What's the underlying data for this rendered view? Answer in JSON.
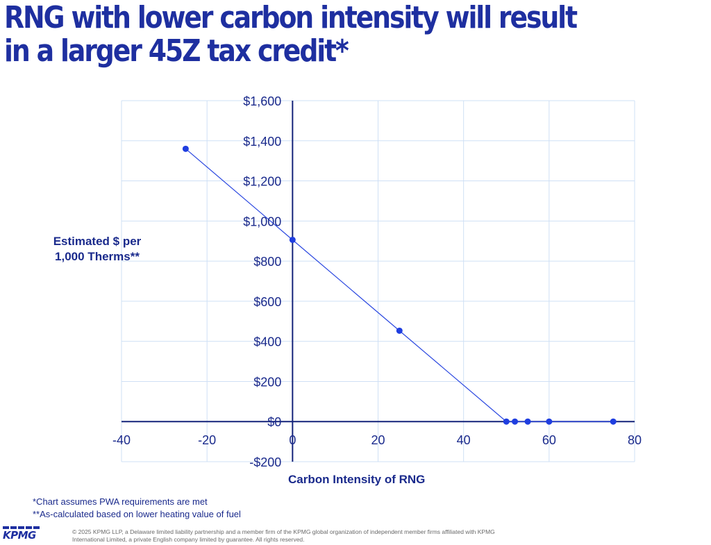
{
  "title": "RNG with lower carbon intensity will result in a larger 45Z tax credit*",
  "chart_data": {
    "type": "scatter",
    "x": [
      -25,
      0,
      25,
      50,
      52,
      55,
      60,
      75
    ],
    "y": [
      1360,
      906,
      453,
      0,
      0,
      0,
      0,
      0
    ],
    "xlabel": "Carbon Intensity of RNG",
    "ylabel": "Estimated $ per 1,000 Therms**",
    "xlim": [
      -40,
      80
    ],
    "ylim": [
      -200,
      1600
    ],
    "xticks": [
      -40,
      -20,
      0,
      20,
      40,
      60,
      80
    ],
    "yticks": [
      -200,
      0,
      200,
      400,
      600,
      800,
      1000,
      1200,
      1400,
      1600
    ],
    "xtick_labels": [
      "-40",
      "-20",
      "0",
      "20",
      "40",
      "60",
      "80"
    ],
    "ytick_labels": [
      "-$200",
      "$0",
      "$200",
      "$400",
      "$600",
      "$800",
      "$1,000",
      "$1,200",
      "$1,400",
      "$1,600"
    ],
    "grid": true,
    "line_connects_points": true,
    "colors": {
      "points": "#1f3ee0",
      "line": "#2a47e0",
      "axis": "#14237a",
      "grid": "#cfe0f5",
      "text": "#1a2a8c"
    }
  },
  "footnotes": [
    "*Chart assumes PWA requirements are met",
    "**As-calculated based on lower heating value of fuel"
  ],
  "logo_text": "KPMG",
  "copyright": "© 2025 KPMG LLP, a Delaware limited liability partnership and a member firm of the KPMG global organization of independent member firms affiliated with KPMG International Limited, a private English company limited by guarantee. All rights reserved."
}
